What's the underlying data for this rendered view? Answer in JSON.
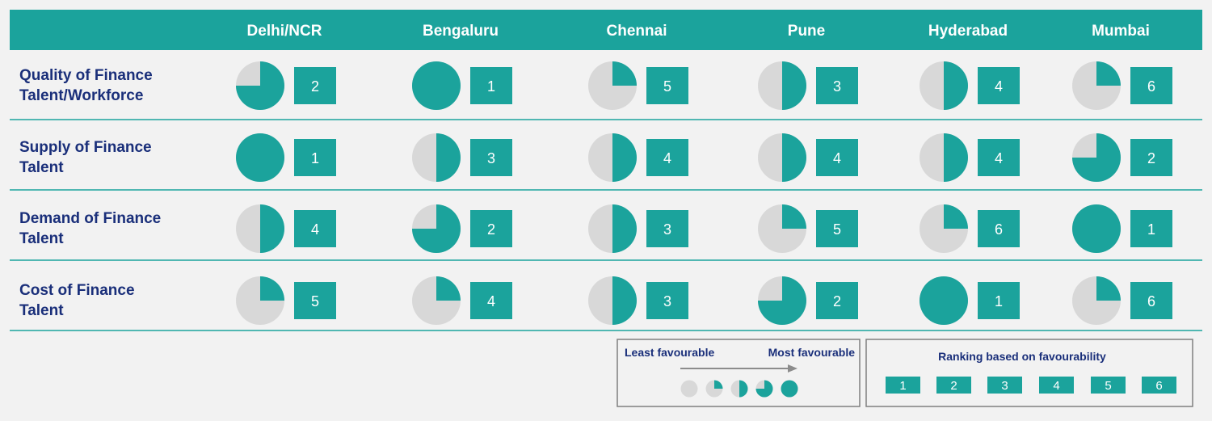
{
  "colors": {
    "teal": "#1ba39c",
    "light_gray": "#d8d8d8",
    "row_label": "#1a2f7a",
    "legend_text": "#1a2f7a",
    "divider": "#1ba39c",
    "background": "#f2f2f2"
  },
  "chart_data": {
    "type": "table",
    "columns": [
      "Delhi/NCR",
      "Bengaluru",
      "Chennai",
      "Pune",
      "Hyderabad",
      "Mumbai"
    ],
    "rows": [
      {
        "label_lines": [
          "Quality of Finance",
          "Talent/Workforce"
        ],
        "favourability_quarters": [
          3,
          4,
          1,
          2,
          2,
          1
        ],
        "ranks": [
          "2",
          "1",
          "5",
          "3",
          "4",
          "6"
        ]
      },
      {
        "label_lines": [
          "Supply of Finance",
          "Talent"
        ],
        "favourability_quarters": [
          4,
          2,
          2,
          2,
          2,
          3
        ],
        "ranks": [
          "1",
          "3",
          "4",
          "4",
          "4",
          "2"
        ]
      },
      {
        "label_lines": [
          "Demand of Finance",
          "Talent"
        ],
        "favourability_quarters": [
          2,
          3,
          2,
          1,
          1,
          4
        ],
        "ranks": [
          "4",
          "2",
          "3",
          "5",
          "6",
          "1"
        ]
      },
      {
        "label_lines": [
          "Cost of Finance",
          "Talent"
        ],
        "favourability_quarters": [
          1,
          1,
          2,
          3,
          4,
          1
        ],
        "ranks": [
          "5",
          "4",
          "3",
          "2",
          "1",
          "6"
        ]
      }
    ],
    "legend_favourability": {
      "least_label": "Least favourable",
      "most_label": "Most favourable",
      "scale_quarters": [
        0,
        1,
        2,
        3,
        4
      ]
    },
    "legend_ranking": {
      "title": "Ranking based on favourability",
      "values": [
        "1",
        "2",
        "3",
        "4",
        "5",
        "6"
      ]
    }
  }
}
